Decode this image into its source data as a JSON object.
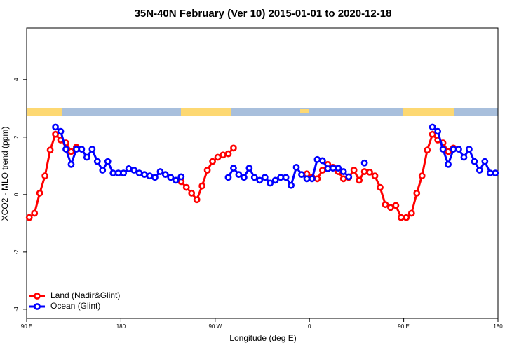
{
  "chart_data": {
    "type": "line",
    "title": "35N-40N February (Ver 10)   2015-01-01 to 2020-12-18",
    "xlabel": "Longitude (deg E)",
    "ylabel": "XCO2 - MLO trend (ppm)",
    "xlim": [
      90,
      540
    ],
    "ylim": [
      -4.32,
      5.8
    ],
    "xticks": [
      {
        "value": 90,
        "label": "90 E"
      },
      180,
      {
        "value": 270,
        "label": "90 W"
      },
      {
        "value": 360,
        "label": "0"
      },
      {
        "value": 450,
        "label": "90 E"
      },
      {
        "value": 540,
        "label": "180"
      }
    ],
    "yticks": [
      -4,
      -2,
      0,
      2,
      4
    ],
    "legend": "bottom-left",
    "x": [
      92.5,
      97.5,
      102.5,
      107.5,
      112.5,
      117.5,
      122.5,
      127.5,
      132.5,
      137.5,
      142.5,
      147.5,
      152.5,
      157.5,
      162.5,
      167.5,
      172.5,
      177.5,
      182.5,
      187.5,
      192.5,
      197.5,
      202.5,
      207.5,
      212.5,
      217.5,
      222.5,
      227.5,
      232.5,
      237.5,
      242.5,
      247.5,
      252.5,
      257.5,
      262.5,
      267.5,
      272.5,
      277.5,
      282.5,
      287.5,
      292.5,
      297.5,
      302.5,
      307.5,
      312.5,
      317.5,
      322.5,
      327.5,
      332.5,
      337.5,
      342.5,
      347.5,
      352.5,
      357.5,
      362.5,
      367.5,
      372.5,
      377.5,
      382.5,
      387.5,
      392.5,
      397.5,
      402.5,
      407.5,
      412.5,
      417.5,
      422.5,
      427.5,
      432.5,
      437.5,
      442.5,
      447.5,
      452.5,
      457.5,
      462.5,
      467.5,
      472.5,
      477.5,
      482.5,
      487.5,
      492.5,
      497.5,
      502.5,
      507.5,
      512.5,
      517.5,
      522.5,
      527.5,
      532.5,
      537.5
    ],
    "series": [
      {
        "name": "Land (Nadir&Glint)",
        "color": "#ff0000",
        "values": [
          -0.8,
          -0.65,
          0.05,
          0.65,
          1.55,
          2.1,
          1.9,
          1.8,
          1.5,
          1.65,
          null,
          null,
          null,
          null,
          null,
          null,
          null,
          null,
          null,
          null,
          null,
          null,
          null,
          null,
          null,
          null,
          null,
          null,
          null,
          0.45,
          0.25,
          0.05,
          -0.18,
          0.3,
          0.85,
          1.15,
          1.3,
          1.38,
          1.42,
          1.62,
          null,
          null,
          null,
          null,
          null,
          null,
          null,
          null,
          null,
          null,
          null,
          null,
          null,
          0.72,
          0.6,
          0.55,
          0.85,
          1.05,
          0.95,
          0.8,
          0.55,
          0.6,
          0.85,
          0.5,
          0.8,
          0.78,
          0.65,
          0.25,
          -0.35,
          -0.45,
          -0.38,
          -0.8,
          -0.8,
          -0.65,
          0.05,
          0.65,
          1.55,
          2.1,
          1.9,
          1.8,
          1.5,
          1.62,
          null,
          null,
          null,
          null,
          null,
          null,
          null,
          null
        ]
      },
      {
        "name": "Ocean (Glint)",
        "color": "#0000ff",
        "values": [
          null,
          null,
          null,
          null,
          null,
          2.35,
          2.2,
          1.58,
          1.05,
          1.58,
          1.58,
          1.3,
          1.58,
          1.15,
          0.85,
          1.15,
          0.75,
          0.75,
          0.75,
          0.9,
          0.85,
          0.75,
          0.7,
          0.65,
          0.6,
          0.8,
          0.7,
          0.6,
          0.5,
          0.62,
          null,
          null,
          null,
          null,
          null,
          null,
          null,
          null,
          0.6,
          0.92,
          0.7,
          0.6,
          0.92,
          0.6,
          0.5,
          0.6,
          0.4,
          0.5,
          0.6,
          0.6,
          0.32,
          0.95,
          0.7,
          0.55,
          0.55,
          1.22,
          1.18,
          0.9,
          0.92,
          0.92,
          0.8,
          0.62,
          null,
          null,
          1.1,
          null,
          null,
          null,
          null,
          null,
          null,
          null,
          null,
          null,
          null,
          null,
          null,
          2.35,
          2.2,
          1.58,
          1.05,
          1.58,
          1.58,
          1.3,
          1.58,
          1.15,
          0.85,
          1.15,
          0.75,
          0.75
        ]
      }
    ]
  }
}
